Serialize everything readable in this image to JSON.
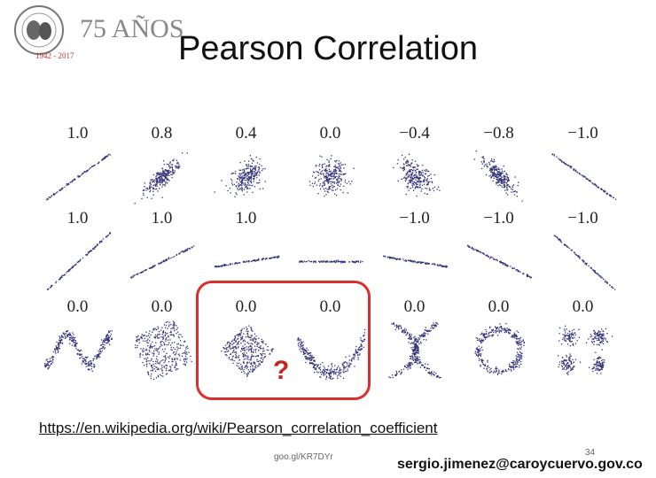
{
  "slide": {
    "title": "Pearson Correlation",
    "logo": {
      "label": "1942 - 2017",
      "badge": "75 AÑOS"
    },
    "question_mark": "?",
    "link": "https://en.wikipedia.org/wiki/Pearson_correlation_coefficient",
    "short_link": "goo.gl/KR7DYr",
    "page_number": "34",
    "email": "sergio.jimenez@caroycuervo.gov.co"
  },
  "colors": {
    "dots": "#33337a",
    "highlight": "#d9302b",
    "question": "#c0281f"
  },
  "panels": [
    [
      {
        "label": "1.0",
        "shape": "line",
        "slope": 0.8
      },
      {
        "label": "0.8",
        "shape": "cloud",
        "rho": 0.8
      },
      {
        "label": "0.4",
        "shape": "cloud",
        "rho": 0.4
      },
      {
        "label": "0.0",
        "shape": "cloud",
        "rho": 0.0
      },
      {
        "label": "−0.4",
        "shape": "cloud",
        "rho": -0.4
      },
      {
        "label": "−0.8",
        "shape": "cloud",
        "rho": -0.8
      },
      {
        "label": "−1.0",
        "shape": "line",
        "slope": -0.8
      }
    ],
    [
      {
        "label": "1.0",
        "shape": "line",
        "slope": 1.0
      },
      {
        "label": "1.0",
        "shape": "line",
        "slope": 0.55
      },
      {
        "label": "1.0",
        "shape": "line",
        "slope": 0.18
      },
      {
        "label": "",
        "shape": "line",
        "slope": 0.0
      },
      {
        "label": "−1.0",
        "shape": "line",
        "slope": -0.18
      },
      {
        "label": "−1.0",
        "shape": "line",
        "slope": -0.55
      },
      {
        "label": "−1.0",
        "shape": "line",
        "slope": -1.0
      }
    ],
    [
      {
        "label": "0.0",
        "shape": "wave"
      },
      {
        "label": "0.0",
        "shape": "square"
      },
      {
        "label": "0.0",
        "shape": "diamond"
      },
      {
        "label": "0.0",
        "shape": "parabola"
      },
      {
        "label": "0.0",
        "shape": "xcross"
      },
      {
        "label": "0.0",
        "shape": "ring"
      },
      {
        "label": "0.0",
        "shape": "clusters"
      }
    ]
  ]
}
